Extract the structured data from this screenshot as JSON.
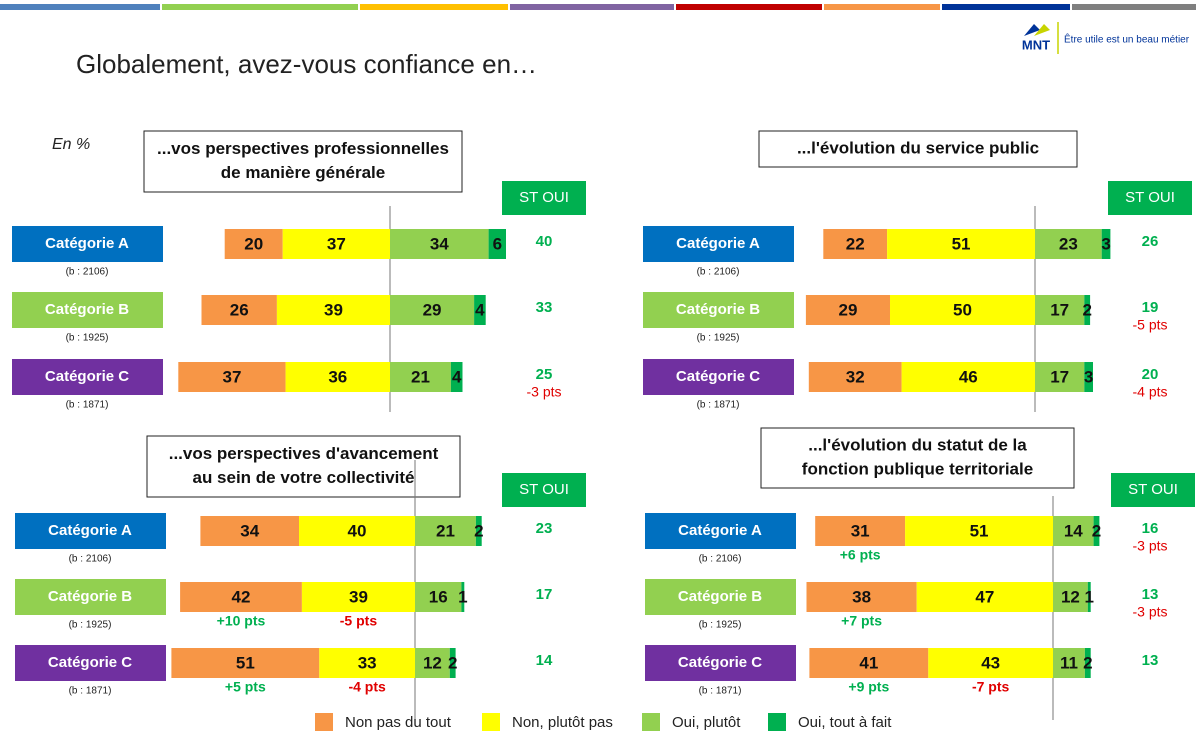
{
  "title": "Globalement, avez-vous confiance en…",
  "logo": {
    "name": "MNT",
    "tagline": "Être utile est un beau métier"
  },
  "unit_note": "En %",
  "chart_data": [
    {
      "type": "diverging-bar",
      "title": [
        "...vos perspectives professionnelles",
        "de manière générale"
      ],
      "categories": [
        "Catégorie A",
        "Catégorie B",
        "Catégorie C"
      ],
      "category_colors": [
        "#0070c0",
        "#92d050",
        "#7030a0"
      ],
      "bases": [
        "(b : 2106)",
        "(b : 1925)",
        "(b : 1871)"
      ],
      "series": [
        {
          "name": "Non pas du tout",
          "color": "#f79646",
          "values": [
            20,
            26,
            37
          ]
        },
        {
          "name": "Non, plutôt pas",
          "color": "#ffff00",
          "values": [
            37,
            39,
            36
          ]
        },
        {
          "name": "Oui, plutôt",
          "color": "#92d050",
          "values": [
            34,
            29,
            21
          ]
        },
        {
          "name": "Oui, tout à fait",
          "color": "#00b050",
          "values": [
            6,
            4,
            4
          ]
        }
      ],
      "st_label": "ST OUI",
      "st_values": [
        40,
        33,
        25
      ],
      "st_changes": [
        null,
        null,
        "-3 pts"
      ]
    },
    {
      "type": "diverging-bar",
      "title": [
        "...l'évolution du service public"
      ],
      "categories": [
        "Catégorie A",
        "Catégorie B",
        "Catégorie C"
      ],
      "category_colors": [
        "#0070c0",
        "#92d050",
        "#7030a0"
      ],
      "bases": [
        "(b : 2106)",
        "(b : 1925)",
        "(b : 1871)"
      ],
      "series": [
        {
          "name": "Non pas du tout",
          "color": "#f79646",
          "values": [
            22,
            29,
            32
          ]
        },
        {
          "name": "Non, plutôt pas",
          "color": "#ffff00",
          "values": [
            51,
            50,
            46
          ]
        },
        {
          "name": "Oui, plutôt",
          "color": "#92d050",
          "values": [
            23,
            17,
            17
          ]
        },
        {
          "name": "Oui, tout à fait",
          "color": "#00b050",
          "values": [
            3,
            2,
            3
          ]
        }
      ],
      "st_label": "ST OUI",
      "st_values": [
        26,
        19,
        20
      ],
      "st_changes": [
        null,
        "-5 pts",
        "-4 pts"
      ]
    },
    {
      "type": "diverging-bar",
      "title": [
        "...vos perspectives d'avancement",
        "au sein de votre collectivité"
      ],
      "categories": [
        "Catégorie A",
        "Catégorie B",
        "Catégorie C"
      ],
      "category_colors": [
        "#0070c0",
        "#92d050",
        "#7030a0"
      ],
      "bases": [
        "(b : 2106)",
        "(b : 1925)",
        "(b : 1871)"
      ],
      "series": [
        {
          "name": "Non pas du tout",
          "color": "#f79646",
          "values": [
            34,
            42,
            51
          ],
          "changes": [
            null,
            "+10 pts",
            "+5 pts"
          ]
        },
        {
          "name": "Non, plutôt pas",
          "color": "#ffff00",
          "values": [
            40,
            39,
            33
          ],
          "changes": [
            null,
            "-5 pts",
            "-4 pts"
          ]
        },
        {
          "name": "Oui, plutôt",
          "color": "#92d050",
          "values": [
            21,
            16,
            12
          ]
        },
        {
          "name": "Oui, tout à fait",
          "color": "#00b050",
          "values": [
            2,
            1,
            2
          ]
        }
      ],
      "st_label": "ST OUI",
      "st_values": [
        23,
        17,
        14
      ],
      "st_changes": [
        null,
        null,
        null
      ]
    },
    {
      "type": "diverging-bar",
      "title": [
        "...l'évolution du statut de la",
        "fonction publique territoriale"
      ],
      "categories": [
        "Catégorie A",
        "Catégorie B",
        "Catégorie C"
      ],
      "category_colors": [
        "#0070c0",
        "#92d050",
        "#7030a0"
      ],
      "bases": [
        "(b : 2106)",
        "(b : 1925)",
        "(b : 1871)"
      ],
      "series": [
        {
          "name": "Non pas du tout",
          "color": "#f79646",
          "values": [
            31,
            38,
            41
          ],
          "changes": [
            "+6 pts",
            "+7 pts",
            "+9 pts"
          ]
        },
        {
          "name": "Non, plutôt pas",
          "color": "#ffff00",
          "values": [
            51,
            47,
            43
          ],
          "changes": [
            null,
            null,
            "-7 pts"
          ]
        },
        {
          "name": "Oui, plutôt",
          "color": "#92d050",
          "values": [
            14,
            12,
            11
          ]
        },
        {
          "name": "Oui, tout à fait",
          "color": "#00b050",
          "values": [
            2,
            1,
            2
          ]
        }
      ],
      "st_label": "ST OUI",
      "st_values": [
        16,
        13,
        13
      ],
      "st_changes": [
        "-3 pts",
        "-3 pts",
        null
      ]
    }
  ]
}
